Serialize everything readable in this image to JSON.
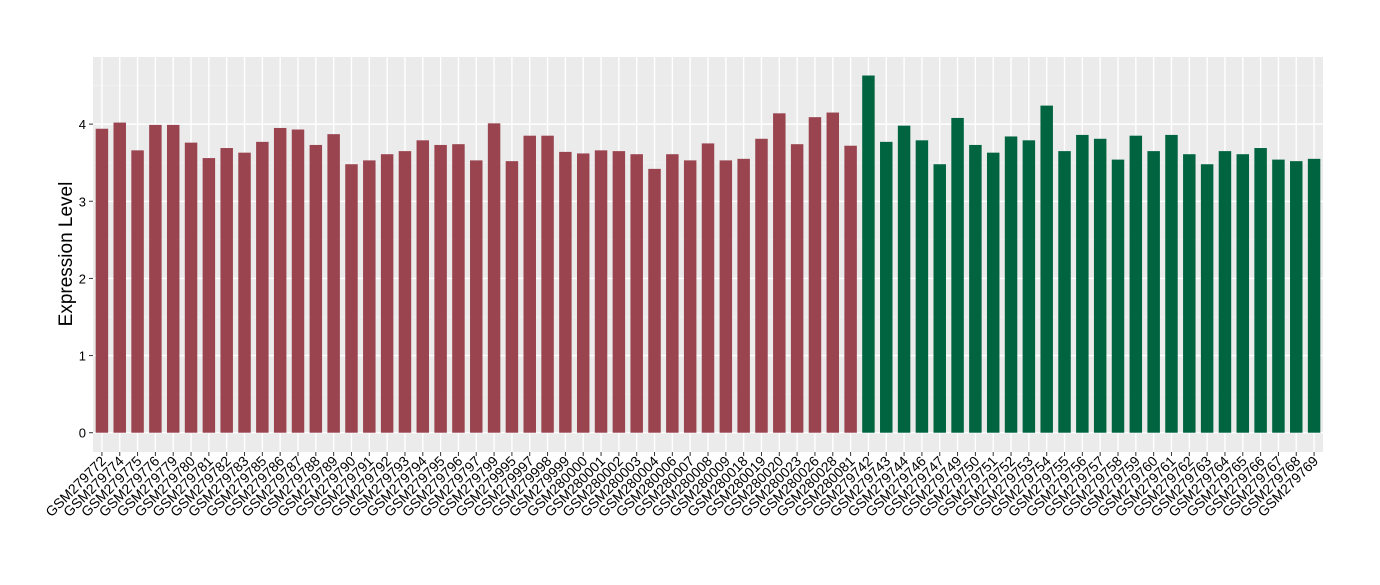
{
  "chart_data": {
    "type": "bar",
    "title": "",
    "xlabel": "",
    "ylabel": "Expression Level",
    "ylim": [
      -0.25,
      4.87
    ],
    "yticks": [
      0,
      1,
      2,
      3,
      4
    ],
    "grid": true,
    "legend": "none",
    "colors": {
      "group_a": "#9a4450",
      "group_b": "#006441",
      "panel_bg": "#ebebeb",
      "grid_major": "#ffffff",
      "grid_minor": "#f2f2f2",
      "tick_text": "#000000"
    },
    "categories": [
      "GSM279772",
      "GSM279774",
      "GSM279775",
      "GSM279776",
      "GSM279779",
      "GSM279780",
      "GSM279781",
      "GSM279782",
      "GSM279783",
      "GSM279785",
      "GSM279786",
      "GSM279787",
      "GSM279788",
      "GSM279789",
      "GSM279790",
      "GSM279791",
      "GSM279792",
      "GSM279793",
      "GSM279794",
      "GSM279795",
      "GSM279796",
      "GSM279797",
      "GSM279799",
      "GSM279995",
      "GSM279997",
      "GSM279998",
      "GSM279999",
      "GSM280000",
      "GSM280001",
      "GSM280002",
      "GSM280003",
      "GSM280004",
      "GSM280006",
      "GSM280007",
      "GSM280008",
      "GSM280009",
      "GSM280018",
      "GSM280019",
      "GSM280020",
      "GSM280023",
      "GSM280026",
      "GSM280028",
      "GSM280081",
      "GSM279742",
      "GSM279743",
      "GSM279744",
      "GSM279746",
      "GSM279747",
      "GSM279749",
      "GSM279750",
      "GSM279751",
      "GSM279752",
      "GSM279753",
      "GSM279754",
      "GSM279755",
      "GSM279756",
      "GSM279757",
      "GSM279758",
      "GSM279759",
      "GSM279760",
      "GSM279761",
      "GSM279762",
      "GSM279763",
      "GSM279764",
      "GSM279765",
      "GSM279766",
      "GSM279767",
      "GSM279768",
      "GSM279769"
    ],
    "values": [
      3.94,
      4.02,
      3.66,
      3.99,
      3.99,
      3.76,
      3.56,
      3.69,
      3.63,
      3.77,
      3.95,
      3.93,
      3.73,
      3.87,
      3.48,
      3.53,
      3.61,
      3.65,
      3.79,
      3.73,
      3.74,
      3.53,
      4.01,
      3.52,
      3.85,
      3.85,
      3.64,
      3.62,
      3.66,
      3.65,
      3.61,
      3.42,
      3.61,
      3.53,
      3.75,
      3.53,
      3.55,
      3.81,
      4.14,
      3.74,
      4.09,
      4.15,
      3.72,
      4.63,
      3.77,
      3.98,
      3.79,
      3.48,
      4.08,
      3.73,
      3.63,
      3.84,
      3.79,
      4.24,
      3.65,
      3.86,
      3.81,
      3.54,
      3.85,
      3.65,
      3.86,
      3.61,
      3.48,
      3.65,
      3.61,
      3.69,
      3.54,
      3.52,
      3.55
    ],
    "groups": [
      "a",
      "a",
      "a",
      "a",
      "a",
      "a",
      "a",
      "a",
      "a",
      "a",
      "a",
      "a",
      "a",
      "a",
      "a",
      "a",
      "a",
      "a",
      "a",
      "a",
      "a",
      "a",
      "a",
      "a",
      "a",
      "a",
      "a",
      "a",
      "a",
      "a",
      "a",
      "a",
      "a",
      "a",
      "a",
      "a",
      "a",
      "a",
      "a",
      "a",
      "a",
      "a",
      "a",
      "b",
      "b",
      "b",
      "b",
      "b",
      "b",
      "b",
      "b",
      "b",
      "b",
      "b",
      "b",
      "b",
      "b",
      "b",
      "b",
      "b",
      "b",
      "b",
      "b",
      "b",
      "b",
      "b",
      "b",
      "b",
      "b"
    ]
  }
}
